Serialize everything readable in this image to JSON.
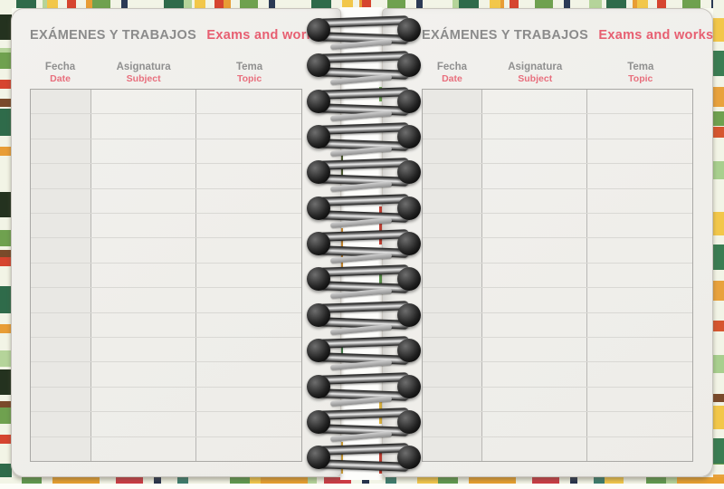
{
  "notebook": {
    "pages": [
      {
        "side": "left",
        "title": "EXÁMENES Y TRABAJOS",
        "title_translation": "Exams and works",
        "columns": [
          {
            "label": "Fecha",
            "translation": "Date"
          },
          {
            "label": "Asignatura",
            "translation": "Subject"
          },
          {
            "label": "Tema",
            "translation": "Topic"
          }
        ],
        "row_count": 15
      },
      {
        "side": "right",
        "title": "EXÁMENES Y TRABAJOS",
        "title_translation": "Exams and works",
        "columns": [
          {
            "label": "Fecha",
            "translation": "Date"
          },
          {
            "label": "Asignatura",
            "translation": "Subject"
          },
          {
            "label": "Tema",
            "translation": "Topic"
          }
        ],
        "row_count": 15
      }
    ],
    "binding": {
      "type": "wire-o-spiral",
      "ring_count": 13
    },
    "colors": {
      "accent_pink": "#e75f71",
      "heading_gray": "#8b8b8b",
      "page_paper": "#f0efec",
      "date_column_fill": "#e9e8e4",
      "grid_border": "#a9a8a5",
      "cover_green_dark": "#2f6b4a",
      "cover_green_light": "#b5d49a",
      "cover_yellow": "#f2c74a",
      "cover_orange": "#e89d35",
      "cover_red": "#d6452f",
      "cover_navy": "#26324b"
    }
  }
}
